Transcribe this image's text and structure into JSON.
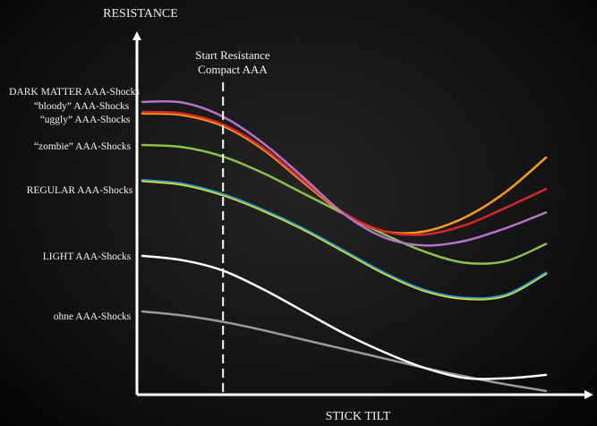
{
  "chart_data": {
    "type": "line",
    "ylabel": "RESISTANCE",
    "xlabel": "STICK TILT",
    "annotation": {
      "line1": "Start Resistance",
      "line2": "Compact AAA",
      "x": 0.2
    },
    "x": [
      0,
      0.1,
      0.2,
      0.3,
      0.4,
      0.5,
      0.6,
      0.7,
      0.8,
      0.9,
      1.0
    ],
    "xlim": [
      0,
      1
    ],
    "ylim": [
      0,
      1
    ],
    "grid": false,
    "series": [
      {
        "name": "ohne AAA-Shocks",
        "color": "#9a9a9a",
        "width": 2.5,
        "values": [
          0.265,
          0.252,
          0.232,
          0.205,
          0.175,
          0.145,
          0.115,
          0.085,
          0.058,
          0.033,
          0.012
        ]
      },
      {
        "name": "LIGHT AAA-Shocks",
        "color": "#ffffff",
        "width": 2.5,
        "values": [
          0.442,
          0.428,
          0.395,
          0.335,
          0.265,
          0.195,
          0.135,
          0.085,
          0.053,
          0.052,
          0.063
        ]
      },
      {
        "name": "REGULAR AAA-Shocks",
        "color": "#d8e020",
        "width": 2.5,
        "values": [
          0.68,
          0.668,
          0.635,
          0.585,
          0.525,
          0.455,
          0.385,
          0.33,
          0.305,
          0.315,
          0.385
        ]
      },
      {
        "name": "REGULAR AAA-Shocks",
        "color": "#2a9ee0",
        "width": 1.8,
        "values": [
          0.684,
          0.672,
          0.639,
          0.589,
          0.529,
          0.459,
          0.389,
          0.334,
          0.309,
          0.319,
          0.389
        ]
      },
      {
        "name": "“zombie” AAA-Shocks",
        "color": "#8bc34a",
        "width": 2.5,
        "values": [
          0.795,
          0.788,
          0.758,
          0.705,
          0.64,
          0.575,
          0.51,
          0.455,
          0.42,
          0.425,
          0.48
        ]
      },
      {
        "name": "“uggly” AAA-Shocks",
        "color": "#ff9a1a",
        "width": 2.5,
        "values": [
          0.895,
          0.89,
          0.855,
          0.78,
          0.675,
          0.575,
          0.52,
          0.52,
          0.565,
          0.645,
          0.755
        ]
      },
      {
        "name": "“bloody” AAA-Shocks",
        "color": "#d4282a",
        "width": 2.5,
        "values": [
          0.9,
          0.895,
          0.86,
          0.785,
          0.68,
          0.578,
          0.52,
          0.51,
          0.54,
          0.595,
          0.655
        ]
      },
      {
        "name": "DARK MATTER AAA-Shocks",
        "color": "#b473c9",
        "width": 2.5,
        "values": [
          0.932,
          0.93,
          0.885,
          0.8,
          0.69,
          0.575,
          0.5,
          0.475,
          0.49,
          0.53,
          0.58
        ]
      }
    ],
    "legend": {
      "placement": "left",
      "entries": [
        "DARK MATTER AAA-Shocks",
        "“bloody” AAA-Shocks",
        "“uggly” AAA-Shocks",
        "“zombie” AAA-Shocks",
        "REGULAR AAA-Shocks",
        "LIGHT AAA-Shocks",
        "ohne AAA-Shocks"
      ]
    }
  }
}
